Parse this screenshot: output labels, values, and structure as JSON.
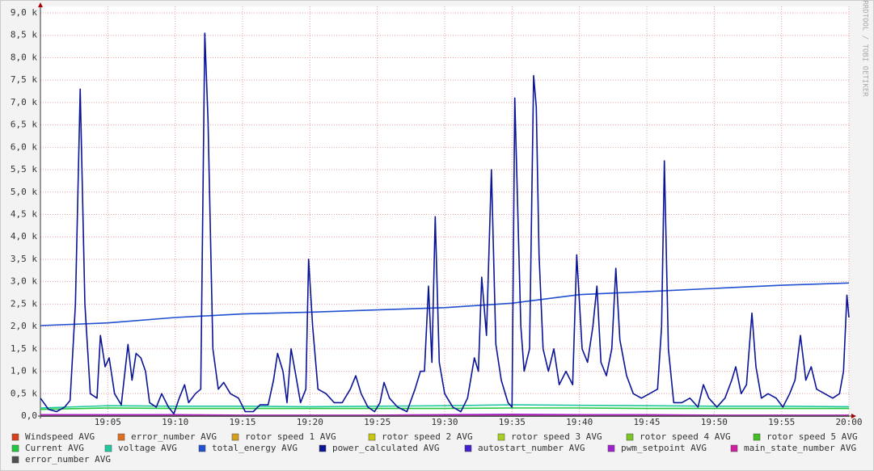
{
  "chart_data": {
    "type": "line",
    "watermark": "RRDTOOL / TOBI OETIKER",
    "xlim": [
      0,
      60
    ],
    "ylim": [
      0,
      9000
    ],
    "grid": true,
    "xticks": [
      {
        "value": 5,
        "label": "19:05"
      },
      {
        "value": 10,
        "label": "19:10"
      },
      {
        "value": 15,
        "label": "19:15"
      },
      {
        "value": 20,
        "label": "19:20"
      },
      {
        "value": 25,
        "label": "19:25"
      },
      {
        "value": 30,
        "label": "19:30"
      },
      {
        "value": 35,
        "label": "19:35"
      },
      {
        "value": 40,
        "label": "19:40"
      },
      {
        "value": 45,
        "label": "19:45"
      },
      {
        "value": 50,
        "label": "19:50"
      },
      {
        "value": 55,
        "label": "19:55"
      },
      {
        "value": 60,
        "label": "20:00"
      }
    ],
    "yticks": [
      {
        "value": 0,
        "label": "0,0"
      },
      {
        "value": 500,
        "label": "0,5 k"
      },
      {
        "value": 1000,
        "label": "1,0 k"
      },
      {
        "value": 1500,
        "label": "1,5 k"
      },
      {
        "value": 2000,
        "label": "2,0 k"
      },
      {
        "value": 2500,
        "label": "2,5 k"
      },
      {
        "value": 3000,
        "label": "3,0 k"
      },
      {
        "value": 3500,
        "label": "3,5 k"
      },
      {
        "value": 4000,
        "label": "4,0 k"
      },
      {
        "value": 4500,
        "label": "4,5 k"
      },
      {
        "value": 5000,
        "label": "5,0 k"
      },
      {
        "value": 5500,
        "label": "5,5 k"
      },
      {
        "value": 6000,
        "label": "6,0 k"
      },
      {
        "value": 6500,
        "label": "6,5 k"
      },
      {
        "value": 7000,
        "label": "7,0 k"
      },
      {
        "value": 7500,
        "label": "7,5 k"
      },
      {
        "value": 8000,
        "label": "8,0 k"
      },
      {
        "value": 8500,
        "label": "8,5 k"
      },
      {
        "value": 9000,
        "label": "9,0 k"
      }
    ],
    "x": [
      0,
      5,
      10,
      15,
      20,
      25,
      30,
      35,
      40,
      45,
      50,
      55,
      60
    ],
    "series": [
      {
        "name": "Windspeed AVG",
        "color": "#d8401a",
        "values": [
          5,
          5,
          5,
          5,
          5,
          5,
          5,
          5,
          5,
          5,
          5,
          5,
          5
        ]
      },
      {
        "name": "error_number AVG",
        "color": "#e07020",
        "values": [
          0,
          0,
          0,
          0,
          0,
          0,
          0,
          0,
          0,
          0,
          0,
          0,
          0
        ]
      },
      {
        "name": "rotor speed 1 AVG",
        "color": "#d4a017",
        "values": [
          0,
          0,
          0,
          0,
          0,
          0,
          0,
          0,
          0,
          0,
          0,
          0,
          0
        ]
      },
      {
        "name": "rotor speed 2 AVG",
        "color": "#c8c810",
        "values": [
          0,
          0,
          0,
          0,
          0,
          0,
          0,
          0,
          0,
          0,
          0,
          0,
          0
        ]
      },
      {
        "name": "rotor speed 3 AVG",
        "color": "#a8d020",
        "values": [
          0,
          0,
          0,
          0,
          0,
          0,
          0,
          0,
          0,
          0,
          0,
          0,
          0
        ]
      },
      {
        "name": "rotor speed 4 AVG",
        "color": "#78c820",
        "values": [
          0,
          0,
          0,
          0,
          0,
          0,
          0,
          0,
          0,
          0,
          0,
          0,
          0
        ]
      },
      {
        "name": "rotor speed 5 AVG",
        "color": "#40c020",
        "values": [
          0,
          0,
          0,
          0,
          0,
          0,
          0,
          0,
          0,
          0,
          0,
          0,
          0
        ]
      },
      {
        "name": "Current AVG",
        "color": "#20c840",
        "values": [
          150,
          180,
          170,
          170,
          170,
          170,
          170,
          180,
          180,
          170,
          170,
          170,
          170
        ]
      },
      {
        "name": "voltage AVG",
        "color": "#20c8a0",
        "values": [
          180,
          230,
          220,
          220,
          210,
          220,
          230,
          250,
          240,
          230,
          220,
          220,
          210
        ]
      },
      {
        "name": "total_energy AVG",
        "color": "#2050d0",
        "values": [
          2020,
          2080,
          2200,
          2280,
          2320,
          2370,
          2420,
          2520,
          2710,
          2780,
          2850,
          2920,
          2970
        ]
      },
      {
        "name": "power_calculated AVG",
        "color": "#0a1496",
        "x": [
          0,
          0.6,
          1.2,
          1.8,
          2.2,
          2.6,
          2.95,
          3.3,
          3.7,
          4.2,
          4.45,
          4.8,
          5.1,
          5.5,
          6,
          6.5,
          6.8,
          7.1,
          7.45,
          7.8,
          8.1,
          8.6,
          9,
          9.5,
          9.9,
          10.3,
          10.7,
          11,
          11.5,
          11.9,
          12.2,
          12.44,
          12.8,
          13.2,
          13.6,
          14.1,
          14.7,
          15.2,
          15.8,
          16.3,
          16.9,
          17.3,
          17.6,
          18,
          18.3,
          18.6,
          18.9,
          19.3,
          19.7,
          19.9,
          20.2,
          20.6,
          21.2,
          21.8,
          22.4,
          23,
          23.4,
          23.8,
          24.3,
          24.8,
          25.2,
          25.5,
          25.9,
          26.5,
          27.2,
          27.8,
          28.2,
          28.5,
          28.8,
          29.05,
          29.3,
          29.6,
          30,
          30.6,
          31.2,
          31.7,
          32.2,
          32.5,
          32.75,
          33.1,
          33.47,
          33.8,
          34.2,
          34.7,
          35,
          35.2,
          35.5,
          35.65,
          35.9,
          36.3,
          36.6,
          36.8,
          37,
          37.3,
          37.7,
          38.1,
          38.5,
          39,
          39.5,
          39.8,
          40.2,
          40.6,
          41,
          41.3,
          41.6,
          42,
          42.4,
          42.7,
          43,
          43.5,
          44,
          44.6,
          45.2,
          45.8,
          46.1,
          46.3,
          46.6,
          47,
          47.6,
          48.2,
          48.8,
          49.2,
          49.6,
          50.2,
          50.8,
          51.3,
          51.6,
          52,
          52.4,
          52.8,
          53.1,
          53.5,
          54,
          54.6,
          55.1,
          55.6,
          56,
          56.4,
          56.8,
          57.2,
          57.6,
          58.2,
          58.8,
          59.3,
          59.6,
          59.85,
          60
        ],
        "values": [
          400,
          150,
          100,
          200,
          350,
          2500,
          7300,
          2500,
          500,
          400,
          1800,
          1100,
          1300,
          500,
          250,
          1600,
          800,
          1400,
          1300,
          1000,
          300,
          200,
          500,
          200,
          50,
          400,
          700,
          300,
          500,
          600,
          8550,
          6600,
          1500,
          600,
          750,
          500,
          400,
          100,
          100,
          250,
          250,
          800,
          1400,
          1000,
          300,
          1500,
          1000,
          300,
          600,
          3500,
          2000,
          600,
          500,
          300,
          300,
          600,
          900,
          500,
          200,
          100,
          300,
          750,
          400,
          200,
          100,
          600,
          1000,
          1000,
          2900,
          1200,
          4450,
          1200,
          500,
          200,
          100,
          400,
          1300,
          1000,
          3100,
          1800,
          5500,
          1600,
          800,
          300,
          200,
          7100,
          3700,
          2000,
          1000,
          1500,
          7600,
          6900,
          3600,
          1500,
          1000,
          1500,
          700,
          1000,
          700,
          3600,
          1500,
          1200,
          2000,
          2900,
          1200,
          900,
          1500,
          3300,
          1700,
          900,
          500,
          400,
          500,
          600,
          2000,
          5700,
          1500,
          300,
          300,
          400,
          200,
          700,
          400,
          200,
          400,
          800,
          1100,
          500,
          700,
          2300,
          1100,
          400,
          500,
          400,
          200,
          500,
          800,
          1800,
          800,
          1100,
          600,
          500,
          400,
          500,
          1000,
          2700,
          2200
        ]
      },
      {
        "name": "autostart_number AVG",
        "color": "#4020d0",
        "values": [
          0,
          0,
          0,
          0,
          0,
          0,
          0,
          0,
          0,
          0,
          0,
          0,
          0
        ]
      },
      {
        "name": "pwm_setpoint AVG",
        "color": "#a020d0",
        "values": [
          30,
          30,
          30,
          20,
          20,
          20,
          30,
          40,
          30,
          30,
          20,
          20,
          20
        ]
      },
      {
        "name": "main_state_number AVG",
        "color": "#d020a0",
        "values": [
          10,
          10,
          10,
          10,
          10,
          10,
          10,
          10,
          10,
          10,
          10,
          10,
          10
        ]
      },
      {
        "name": "error_number AVG",
        "color": "#505050",
        "values": [
          0,
          0,
          0,
          0,
          0,
          0,
          0,
          0,
          0,
          0,
          0,
          0,
          0
        ]
      }
    ]
  }
}
